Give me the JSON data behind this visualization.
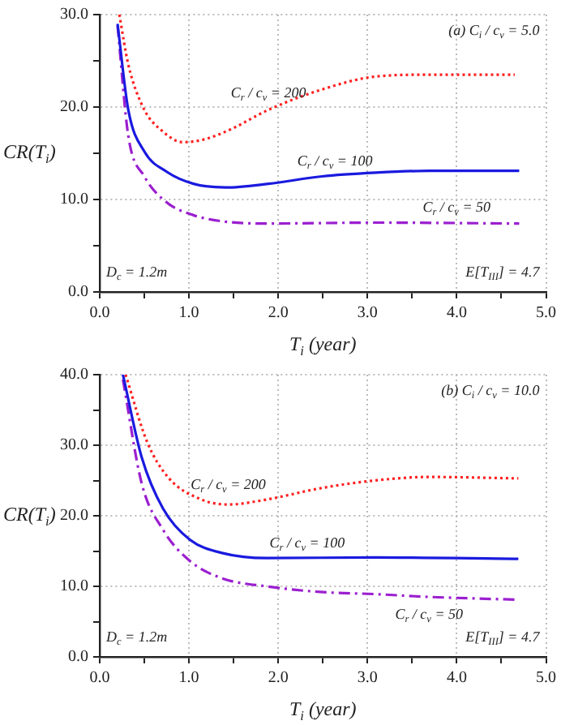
{
  "chart_data": [
    {
      "type": "line",
      "xlabel": "T$_{i}$ (year)",
      "ylabel": "CR(T$_{i}$)",
      "xlim": [
        0,
        5
      ],
      "ylim": [
        0,
        30
      ],
      "xticks": [
        {
          "value": 0,
          "label": "0.0"
        },
        {
          "value": 0.5,
          "label": null
        },
        {
          "value": 1,
          "label": "1.0"
        },
        {
          "value": 1.5,
          "label": null
        },
        {
          "value": 2,
          "label": "2.0"
        },
        {
          "value": 2.5,
          "label": null
        },
        {
          "value": 3,
          "label": "3.0"
        },
        {
          "value": 3.5,
          "label": null
        },
        {
          "value": 4,
          "label": "4.0"
        },
        {
          "value": 4.5,
          "label": null
        },
        {
          "value": 5,
          "label": "5.0"
        }
      ],
      "yticks": [
        {
          "value": 0,
          "label": "0.0"
        },
        {
          "value": 5,
          "label": null
        },
        {
          "value": 10,
          "label": "10.0"
        },
        {
          "value": 15,
          "label": null
        },
        {
          "value": 20,
          "label": "20.0"
        },
        {
          "value": 25,
          "label": null
        },
        {
          "value": 30,
          "label": "30.0"
        }
      ],
      "grid": true,
      "legend": false,
      "marker": "none",
      "series": [
        {
          "name": "C$_{r}$ / c$_{v}$ = 200",
          "color": "#ff2020",
          "line_style": "dotted",
          "x": [
            0.22,
            0.32,
            0.5,
            0.69,
            0.93,
            1.17,
            1.47,
            1.89,
            2.49,
            3.09,
            3.69,
            4.65
          ],
          "values": [
            30,
            24.6,
            19.7,
            17.5,
            16.2,
            16.5,
            17.6,
            19.7,
            21.9,
            23.3,
            23.5,
            23.5
          ]
        },
        {
          "name": "C$_{r}$ / c$_{v}$ = 100",
          "color": "#1a1adf",
          "line_style": "solid",
          "x": [
            0.2,
            0.32,
            0.5,
            0.75,
            1.05,
            1.41,
            1.89,
            2.49,
            3.09,
            3.69,
            4.7
          ],
          "values": [
            29,
            19.7,
            15.2,
            13.0,
            11.7,
            11.3,
            11.7,
            12.5,
            12.9,
            13.1,
            13.1
          ]
        },
        {
          "name": "C$_{r}$ / c$_{v}$ = 50",
          "color": "#9b1fd0",
          "line_style": "dashed",
          "x": [
            0.2,
            0.32,
            0.5,
            0.75,
            1.05,
            1.41,
            1.89,
            3.09,
            4.7
          ],
          "values": [
            28.8,
            16.9,
            12.5,
            9.7,
            8.3,
            7.6,
            7.4,
            7.5,
            7.4
          ]
        }
      ],
      "annotations": [
        "(a) C$_{i}$ / c$_{v}$ = 5.0",
        "D$_{c}$ = 1.2m",
        "E[T$_{III}$] = 4.7"
      ]
    },
    {
      "type": "line",
      "xlabel": "T$_{i}$ (year)",
      "ylabel": "CR(T$_{i}$)",
      "xlim": [
        0,
        5
      ],
      "ylim": [
        0,
        40
      ],
      "xticks": [
        {
          "value": 0,
          "label": "0.0"
        },
        {
          "value": 0.5,
          "label": null
        },
        {
          "value": 1,
          "label": "1.0"
        },
        {
          "value": 1.5,
          "label": null
        },
        {
          "value": 2,
          "label": "2.0"
        },
        {
          "value": 2.5,
          "label": null
        },
        {
          "value": 3,
          "label": "3.0"
        },
        {
          "value": 3.5,
          "label": null
        },
        {
          "value": 4,
          "label": "4.0"
        },
        {
          "value": 4.5,
          "label": null
        },
        {
          "value": 5,
          "label": "5.0"
        }
      ],
      "yticks": [
        {
          "value": 0,
          "label": "0.0"
        },
        {
          "value": 5,
          "label": null
        },
        {
          "value": 10,
          "label": "10.0"
        },
        {
          "value": 15,
          "label": null
        },
        {
          "value": 20,
          "label": "20.0"
        },
        {
          "value": 25,
          "label": null
        },
        {
          "value": 30,
          "label": "30.0"
        },
        {
          "value": 35,
          "label": null
        },
        {
          "value": 40,
          "label": "40.0"
        }
      ],
      "grid": true,
      "legend": false,
      "marker": "none",
      "series": [
        {
          "name": "C$_{r}$ / c$_{v}$ = 200",
          "color": "#ff2020",
          "line_style": "dotted",
          "x": [
            0.29,
            0.53,
            0.77,
            1.14,
            1.44,
            1.87,
            2.47,
            3.08,
            3.69,
            4.69
          ],
          "values": [
            40,
            30.5,
            25.4,
            22.3,
            21.6,
            22.3,
            23.9,
            25,
            25.5,
            25.3
          ]
        },
        {
          "name": "C$_{r}$ / c$_{v}$ = 100",
          "color": "#1a1adf",
          "line_style": "solid",
          "x": [
            0.26,
            0.47,
            0.71,
            1.01,
            1.38,
            1.87,
            3.08,
            4.69
          ],
          "values": [
            40,
            28.3,
            21,
            16.6,
            14.7,
            14,
            14.1,
            13.9
          ]
        },
        {
          "name": "C$_{r}$ / c$_{v}$ = 50",
          "color": "#9b1fd0",
          "line_style": "dashed",
          "x": [
            0.26,
            0.47,
            0.71,
            1.01,
            1.38,
            1.87,
            2.47,
            3.08,
            3.69,
            4.69
          ],
          "values": [
            39.3,
            24.6,
            18,
            13.6,
            11.1,
            10,
            9.2,
            8.9,
            8.5,
            8.1
          ]
        }
      ],
      "annotations": [
        "(b) C$_{i}$ / c$_{v}$ = 10.0",
        "D$_{c}$ = 1.2m",
        "E[T$_{III}$] = 4.7"
      ]
    }
  ]
}
